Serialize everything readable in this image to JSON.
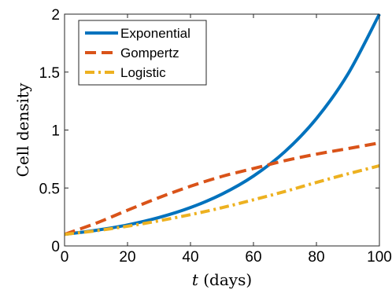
{
  "chart_data": {
    "type": "line",
    "title": "",
    "xlabel": "t (days)",
    "xlabel_var": "t",
    "xlabel_unit": "(days)",
    "ylabel": "Cell density",
    "xlim": [
      0,
      100
    ],
    "ylim": [
      0,
      2
    ],
    "xticks": [
      0,
      20,
      40,
      60,
      80,
      100
    ],
    "yticks": [
      0,
      0.5,
      1,
      1.5,
      2
    ],
    "xtick_labels": [
      "0",
      "20",
      "40",
      "60",
      "80",
      "100"
    ],
    "ytick_labels": [
      "0",
      "0.5",
      "1",
      "1.5",
      "2"
    ],
    "grid": false,
    "legend_position": "top-left",
    "series": [
      {
        "name": "Exponential",
        "color": "#0072BD",
        "dash": "solid",
        "x": [
          0,
          10,
          20,
          30,
          40,
          50,
          60,
          70,
          80,
          90,
          100
        ],
        "y": [
          0.1,
          0.135,
          0.181,
          0.245,
          0.331,
          0.447,
          0.603,
          0.814,
          1.099,
          1.483,
          2.0
        ]
      },
      {
        "name": "Gompertz",
        "color": "#D95319",
        "dash": "dashed",
        "x": [
          0,
          10,
          20,
          30,
          40,
          50,
          60,
          70,
          80,
          90,
          100
        ],
        "y": [
          0.1,
          0.196,
          0.308,
          0.417,
          0.515,
          0.6,
          0.668,
          0.736,
          0.792,
          0.84,
          0.889
        ]
      },
      {
        "name": "Logistic",
        "color": "#EDB120",
        "dash": "dashdot",
        "x": [
          0,
          10,
          20,
          30,
          40,
          50,
          60,
          70,
          80,
          90,
          100
        ],
        "y": [
          0.1,
          0.131,
          0.17,
          0.217,
          0.27,
          0.33,
          0.398,
          0.47,
          0.548,
          0.622,
          0.692
        ]
      }
    ]
  }
}
